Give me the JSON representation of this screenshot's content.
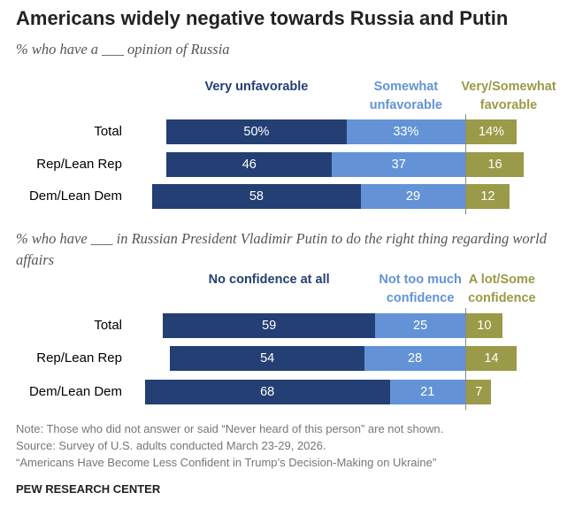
{
  "header": {
    "title": "Americans widely negative towards Russia and Putin"
  },
  "chart_data": [
    {
      "type": "diverging-bar",
      "subtitle": "% who have a ___ opinion of Russia",
      "categories": [
        "Total",
        "Rep/Lean Rep",
        "Dem/Lean Dem"
      ],
      "series": [
        {
          "name": "Very unfavorable",
          "color": "#243f73",
          "values": [
            50,
            46,
            58
          ],
          "value_labels": [
            "50%",
            "46",
            "58"
          ]
        },
        {
          "name": "Somewhat unfavorable",
          "color": "#6393d6",
          "values": [
            33,
            37,
            29
          ],
          "value_labels": [
            "33%",
            "37",
            "29"
          ]
        },
        {
          "name": "Very/Somewhat favorable",
          "color": "#9a9a48",
          "values": [
            14,
            16,
            12
          ],
          "value_labels": [
            "14%",
            "16",
            "12"
          ]
        }
      ]
    },
    {
      "type": "diverging-bar",
      "subtitle": "% who have ___ in Russian President Vladimir Putin to do the right thing regarding world affairs",
      "categories": [
        "Total",
        "Rep/Lean Rep",
        "Dem/Lean Dem"
      ],
      "series": [
        {
          "name": "No confidence at all",
          "color": "#243f73",
          "values": [
            59,
            54,
            68
          ]
        },
        {
          "name": "Not too much confidence",
          "color": "#6393d6",
          "values": [
            25,
            28,
            21
          ]
        },
        {
          "name": "A lot/Some confidence",
          "color": "#9a9a48",
          "values": [
            10,
            14,
            7
          ]
        }
      ]
    }
  ],
  "footer": {
    "note": "Note: Those who did not answer or said “Never heard of this person” are not shown.",
    "source": "Source: Survey of U.S. adults conducted March 23-29, 2026.",
    "report": "“Americans Have Become Less Confident in Trump’s Decision-Making on Ukraine”",
    "org": "PEW RESEARCH CENTER"
  }
}
